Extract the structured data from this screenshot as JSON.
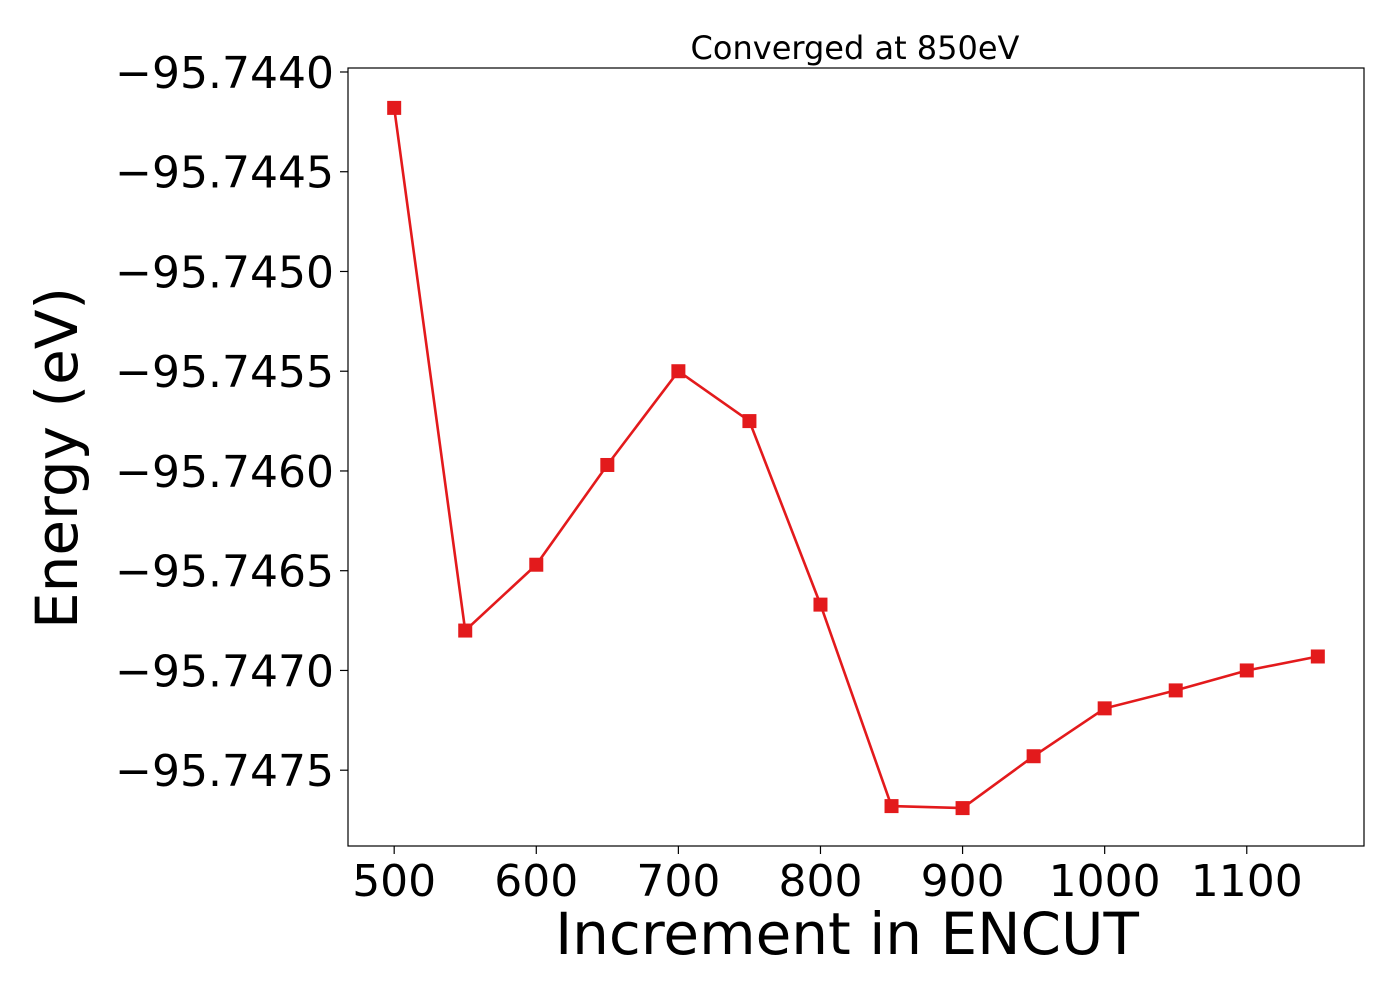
{
  "chart_data": {
    "type": "line",
    "title": "Converged at 850eV",
    "xlabel": "Increment in ENCUT",
    "ylabel": "Energy (eV)",
    "xlim": [
      467.5,
      1182.5
    ],
    "ylim": [
      -95.74788,
      -95.74398
    ],
    "xticks": [
      500,
      600,
      700,
      800,
      900,
      1000,
      1100
    ],
    "xtick_labels": [
      "500",
      "600",
      "700",
      "800",
      "900",
      "1000",
      "1100"
    ],
    "yticks": [
      -95.744,
      -95.7445,
      -95.745,
      -95.7455,
      -95.746,
      -95.7465,
      -95.747,
      -95.7475
    ],
    "ytick_labels": [
      "−95.7440",
      "−95.7445",
      "−95.7450",
      "−95.7455",
      "−95.7460",
      "−95.7465",
      "−95.7470",
      "−95.7475"
    ],
    "grid": false,
    "series": [
      {
        "color": "#e31a1c",
        "marker": "square",
        "x": [
          500,
          550,
          600,
          650,
          700,
          750,
          800,
          850,
          900,
          950,
          1000,
          1050,
          1100,
          1150
        ],
        "y": [
          -95.74418,
          -95.7468,
          -95.74647,
          -95.74597,
          -95.7455,
          -95.74575,
          -95.74667,
          -95.74768,
          -95.74769,
          -95.74743,
          -95.74719,
          -95.7471,
          -95.747,
          -95.74693
        ]
      }
    ]
  }
}
